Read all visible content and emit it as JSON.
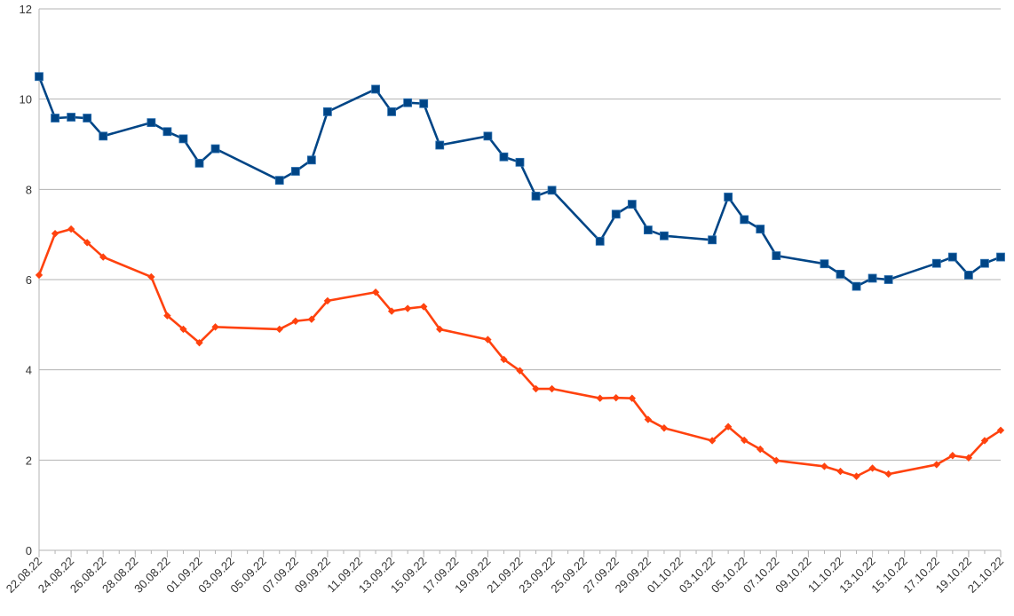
{
  "chart_data": {
    "type": "line",
    "title": "",
    "xlabel": "",
    "ylabel": "",
    "ylim": [
      0,
      12
    ],
    "yticks": [
      "0",
      "2",
      "4",
      "6",
      "8",
      "10",
      "12"
    ],
    "grid": true,
    "legend": "none",
    "x_tick_labels": [
      "22.08.22",
      "24.08.22",
      "26.08.22",
      "28.08.22",
      "30.08.22",
      "01.09.22",
      "03.09.22",
      "05.09.22",
      "07.09.22",
      "09.09.22",
      "11.09.22",
      "13.09.22",
      "15.09.22",
      "17.09.22",
      "19.09.22",
      "21.09.22",
      "23.09.22",
      "25.09.22",
      "27.09.22",
      "29.09.22",
      "01.10.22",
      "03.10.22",
      "05.10.22",
      "07.10.22",
      "09.10.22",
      "11.10.22",
      "13.10.22",
      "15.10.22",
      "17.10.22",
      "19.10.22",
      "21.10.22"
    ],
    "dates": [
      "22.08.22",
      "23.08.22",
      "24.08.22",
      "25.08.22",
      "26.08.22",
      "29.08.22",
      "30.08.22",
      "31.08.22",
      "01.09.22",
      "02.09.22",
      "06.09.22",
      "07.09.22",
      "08.09.22",
      "09.09.22",
      "12.09.22",
      "13.09.22",
      "14.09.22",
      "15.09.22",
      "16.09.22",
      "19.09.22",
      "20.09.22",
      "21.09.22",
      "22.09.22",
      "23.09.22",
      "26.09.22",
      "27.09.22",
      "28.09.22",
      "29.09.22",
      "30.09.22",
      "03.10.22",
      "04.10.22",
      "05.10.22",
      "06.10.22",
      "07.10.22",
      "10.10.22",
      "11.10.22",
      "12.10.22",
      "13.10.22",
      "14.10.22",
      "17.10.22",
      "18.10.22",
      "19.10.22",
      "20.10.22",
      "21.10.22"
    ],
    "series": [
      {
        "color": "#004586",
        "marker": "square",
        "values": [
          10.5,
          9.58,
          9.6,
          9.58,
          9.18,
          9.48,
          9.28,
          9.12,
          8.58,
          8.9,
          8.2,
          8.4,
          8.65,
          9.72,
          10.22,
          9.72,
          9.92,
          9.9,
          8.98,
          9.18,
          8.72,
          8.6,
          7.85,
          7.98,
          6.85,
          7.45,
          7.67,
          7.1,
          6.97,
          6.88,
          7.83,
          7.33,
          7.12,
          6.53,
          6.35,
          6.12,
          5.85,
          6.03,
          6.0,
          6.36,
          6.5,
          6.1,
          6.36,
          6.5
        ]
      },
      {
        "color": "#ff420e",
        "marker": "diamond",
        "values": [
          6.1,
          7.02,
          7.12,
          6.82,
          6.5,
          6.06,
          5.2,
          4.9,
          4.6,
          4.95,
          4.9,
          5.08,
          5.12,
          5.53,
          5.72,
          5.3,
          5.36,
          5.4,
          4.9,
          4.67,
          4.23,
          3.98,
          3.58,
          3.58,
          3.37,
          3.38,
          3.37,
          2.9,
          2.71,
          2.43,
          2.74,
          2.44,
          2.24,
          1.99,
          1.86,
          1.75,
          1.64,
          1.82,
          1.69,
          1.9,
          2.1,
          2.05,
          2.43,
          2.66
        ]
      }
    ]
  }
}
